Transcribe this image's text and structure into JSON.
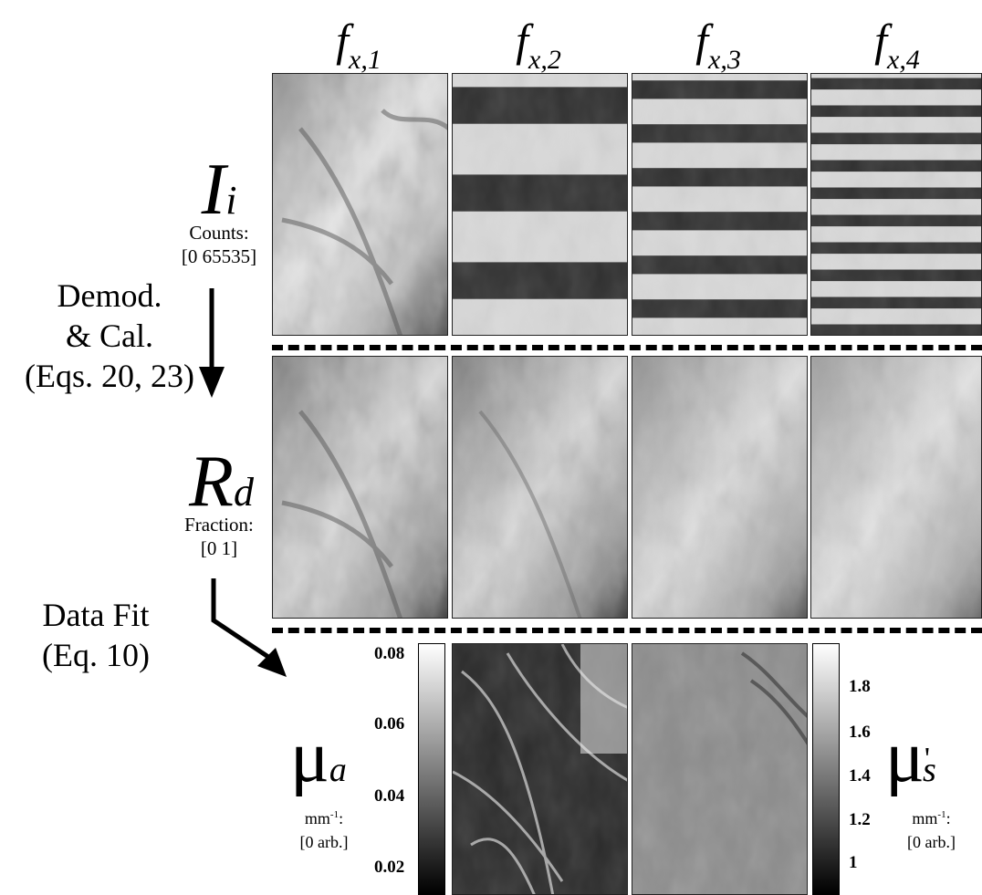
{
  "columns": [
    {
      "base": "f",
      "sub": "x,1"
    },
    {
      "base": "f",
      "sub": "x,2"
    },
    {
      "base": "f",
      "sub": "x,3"
    },
    {
      "base": "f",
      "sub": "x,4"
    }
  ],
  "row1": {
    "symbol": "I",
    "sub": "i",
    "unit_line1": "Counts:",
    "unit_line2": "[0 65535]"
  },
  "row2": {
    "symbol": "R",
    "sub": "d",
    "unit_line1": "Fraction:",
    "unit_line2": "[0 1]"
  },
  "step1": {
    "line1": "Demod.",
    "line2": "& Cal.",
    "line3": "(Eqs. 20, 23)"
  },
  "step2": {
    "line1": "Data Fit",
    "line2": "(Eq. 10)"
  },
  "mu_a": {
    "symbol": "μ",
    "sub": "a",
    "unit_line1": "mm",
    "unit_exp": "-1",
    "unit_colon": ":",
    "unit_line2": "[0 arb.]",
    "ticks": [
      "0.08",
      "0.06",
      "0.04",
      "0.02"
    ]
  },
  "mu_s": {
    "symbol": "μ",
    "prime": "'",
    "sub": "s",
    "unit_line1": "mm",
    "unit_exp": "-1",
    "unit_colon": ":",
    "unit_line2": "[0 arb.]",
    "ticks": [
      "1.8",
      "1.6",
      "1.4",
      "1.2",
      "1"
    ]
  },
  "stripe_periods": [
    0,
    96,
    48,
    30
  ]
}
